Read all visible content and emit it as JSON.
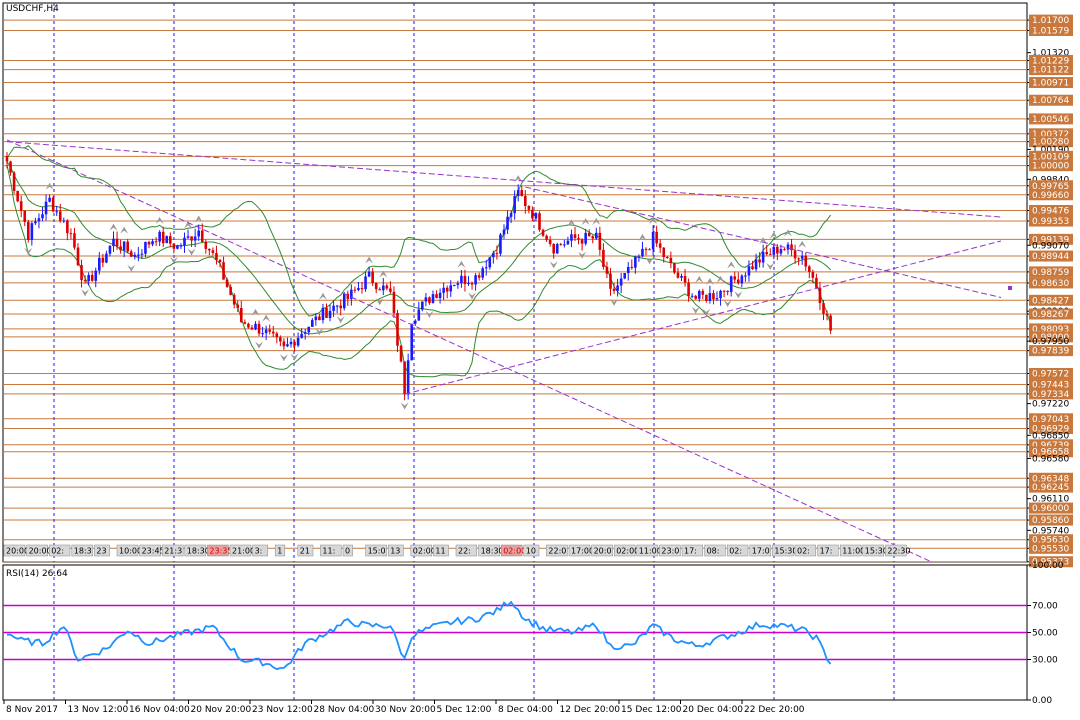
{
  "symbol_label": "USDCHF,H4",
  "rsi_label": "RSI(14) 26.64",
  "colors": {
    "hline": "#c8783c",
    "tag_bg": "#c8783c",
    "tag_text": "#ffffff",
    "grid": "#1a1aff",
    "bull": "#1a1aff",
    "bear": "#dd0000",
    "band": "#2e8b2e",
    "trend": "#9933cc",
    "rsi_line": "#1e90ff",
    "rsi_levels": "#cc00cc"
  },
  "chart_data": [
    {
      "type": "candlestick",
      "title": "USDCHF,H4",
      "ylim": [
        0.9537,
        1.019
      ],
      "price_ticks": [
        {
          "v": 1.017,
          "tag": true
        },
        {
          "v": 1.01579,
          "tag": true
        },
        {
          "v": 1.0132,
          "tag": false
        },
        {
          "v": 1.01229,
          "tag": true
        },
        {
          "v": 1.01122,
          "tag": true
        },
        {
          "v": 1.00971,
          "tag": true
        },
        {
          "v": 1.00764,
          "tag": true
        },
        {
          "v": 1.00546,
          "tag": true
        },
        {
          "v": 1.00372,
          "tag": true
        },
        {
          "v": 1.0028,
          "tag": true
        },
        {
          "v": 1.0019,
          "tag": false
        },
        {
          "v": 1.00109,
          "tag": true
        },
        {
          "v": 1.0,
          "tag": true
        },
        {
          "v": 0.9984,
          "tag": false
        },
        {
          "v": 0.99765,
          "tag": true
        },
        {
          "v": 0.9966,
          "tag": true
        },
        {
          "v": 0.99476,
          "tag": true
        },
        {
          "v": 0.99353,
          "tag": true
        },
        {
          "v": 0.99139,
          "tag": true
        },
        {
          "v": 0.9907,
          "tag": false
        },
        {
          "v": 0.98944,
          "tag": true
        },
        {
          "v": 0.98759,
          "tag": true
        },
        {
          "v": 0.9863,
          "tag": true
        },
        {
          "v": 0.98427,
          "tag": true
        },
        {
          "v": 0.983,
          "tag": false
        },
        {
          "v": 0.98267,
          "tag": true
        },
        {
          "v": 0.98093,
          "tag": true
        },
        {
          "v": 0.98,
          "tag": true
        },
        {
          "v": 0.9795,
          "tag": false
        },
        {
          "v": 0.97839,
          "tag": true
        },
        {
          "v": 0.97572,
          "tag": true
        },
        {
          "v": 0.97443,
          "tag": true
        },
        {
          "v": 0.97334,
          "tag": true
        },
        {
          "v": 0.9722,
          "tag": false
        },
        {
          "v": 0.97043,
          "tag": true
        },
        {
          "v": 0.96929,
          "tag": true
        },
        {
          "v": 0.9685,
          "tag": false
        },
        {
          "v": 0.96739,
          "tag": true
        },
        {
          "v": 0.96658,
          "tag": true
        },
        {
          "v": 0.9658,
          "tag": false
        },
        {
          "v": 0.96348,
          "tag": true
        },
        {
          "v": 0.96245,
          "tag": true
        },
        {
          "v": 0.9611,
          "tag": false
        },
        {
          "v": 0.96,
          "tag": true
        },
        {
          "v": 0.9586,
          "tag": true
        },
        {
          "v": 0.9574,
          "tag": false
        },
        {
          "v": 0.9563,
          "tag": true
        },
        {
          "v": 0.9553,
          "tag": true
        },
        {
          "v": 0.95373,
          "tag": true
        }
      ],
      "x_tick_labels": [
        "8 Nov 2017",
        "13 Nov 12:00",
        "16 Nov 04:00",
        "20 Nov 20:00",
        "23 Nov 12:00",
        "28 Nov 04:00",
        "30 Nov 20:00",
        "5 Dec 12:00",
        "8 Dec 04:00",
        "12 Dec 20:00",
        "15 Dec 12:00",
        "20 Dec 04:00",
        "22 Dec 20:00"
      ],
      "time_tags": [
        "20:00",
        "20:00",
        "02:",
        "18:3",
        "23",
        "10:00",
        "23:45",
        "21:3",
        "18:30",
        "23:35",
        "21:00",
        "3:",
        "1",
        "21",
        "11:",
        "0",
        "15:0",
        "13",
        "02:00",
        "11",
        "22:",
        "18:30",
        "02:00",
        "10",
        "22:0",
        "17:00",
        "20:0",
        "02:00",
        "11:00",
        "23:0",
        "17:",
        "08:",
        "02:",
        "17:0",
        "15:30",
        "02:",
        "17:",
        "11:00",
        "15:30",
        "22:30"
      ],
      "time_tags_highlight": [
        9,
        22
      ],
      "close_anchors": [
        [
          0,
          1.0005
        ],
        [
          6,
          0.992
        ],
        [
          12,
          0.996
        ],
        [
          18,
          0.992
        ],
        [
          22,
          0.9858
        ],
        [
          30,
          0.9912
        ],
        [
          36,
          0.9895
        ],
        [
          42,
          0.9918
        ],
        [
          48,
          0.9905
        ],
        [
          54,
          0.9925
        ],
        [
          60,
          0.988
        ],
        [
          66,
          0.9818
        ],
        [
          72,
          0.9808
        ],
        [
          78,
          0.9785
        ],
        [
          84,
          0.981
        ],
        [
          90,
          0.983
        ],
        [
          96,
          0.9845
        ],
        [
          102,
          0.987
        ],
        [
          108,
          0.985
        ],
        [
          112,
          0.9738
        ],
        [
          114,
          0.9822
        ],
        [
          120,
          0.985
        ],
        [
          126,
          0.9865
        ],
        [
          132,
          0.987
        ],
        [
          138,
          0.9905
        ],
        [
          144,
          0.9968
        ],
        [
          148,
          0.9945
        ],
        [
          154,
          0.9905
        ],
        [
          160,
          0.9915
        ],
        [
          166,
          0.9915
        ],
        [
          170,
          0.985
        ],
        [
          176,
          0.988
        ],
        [
          182,
          0.9915
        ],
        [
          188,
          0.9875
        ],
        [
          194,
          0.9845
        ],
        [
          200,
          0.985
        ],
        [
          206,
          0.987
        ],
        [
          212,
          0.989
        ],
        [
          218,
          0.9905
        ],
        [
          224,
          0.9895
        ],
        [
          228,
          0.986
        ],
        [
          232,
          0.9808
        ]
      ],
      "trend_lines": [
        [
          [
            0,
            1.0028
          ],
          [
            280,
            0.994
          ]
        ],
        [
          [
            0,
            1.003
          ],
          [
            260,
            0.9538
          ]
        ],
        [
          [
            112,
            0.9733
          ],
          [
            280,
            0.9912
          ]
        ],
        [
          [
            146,
            0.9975
          ],
          [
            280,
            0.9846
          ]
        ]
      ]
    },
    {
      "type": "line",
      "title": "RSI(14) 26.64",
      "ylim": [
        0,
        100
      ],
      "levels": [
        30,
        50,
        70
      ],
      "tick_labels": [
        "100.00",
        "70.00",
        "50.00",
        "30.00",
        "0.00"
      ],
      "anchors": [
        [
          0,
          50
        ],
        [
          4,
          44
        ],
        [
          10,
          42
        ],
        [
          16,
          55
        ],
        [
          20,
          30
        ],
        [
          28,
          38
        ],
        [
          34,
          52
        ],
        [
          40,
          42
        ],
        [
          48,
          48
        ],
        [
          58,
          54
        ],
        [
          66,
          30
        ],
        [
          72,
          28
        ],
        [
          78,
          23
        ],
        [
          84,
          42
        ],
        [
          90,
          50
        ],
        [
          96,
          58
        ],
        [
          102,
          55
        ],
        [
          108,
          55
        ],
        [
          112,
          30
        ],
        [
          114,
          48
        ],
        [
          120,
          54
        ],
        [
          126,
          58
        ],
        [
          132,
          60
        ],
        [
          138,
          66
        ],
        [
          142,
          74
        ],
        [
          146,
          60
        ],
        [
          152,
          52
        ],
        [
          160,
          50
        ],
        [
          166,
          56
        ],
        [
          170,
          40
        ],
        [
          176,
          40
        ],
        [
          182,
          55
        ],
        [
          188,
          45
        ],
        [
          194,
          40
        ],
        [
          200,
          45
        ],
        [
          206,
          50
        ],
        [
          212,
          56
        ],
        [
          218,
          55
        ],
        [
          224,
          52
        ],
        [
          228,
          46
        ],
        [
          232,
          26.64
        ]
      ]
    }
  ]
}
